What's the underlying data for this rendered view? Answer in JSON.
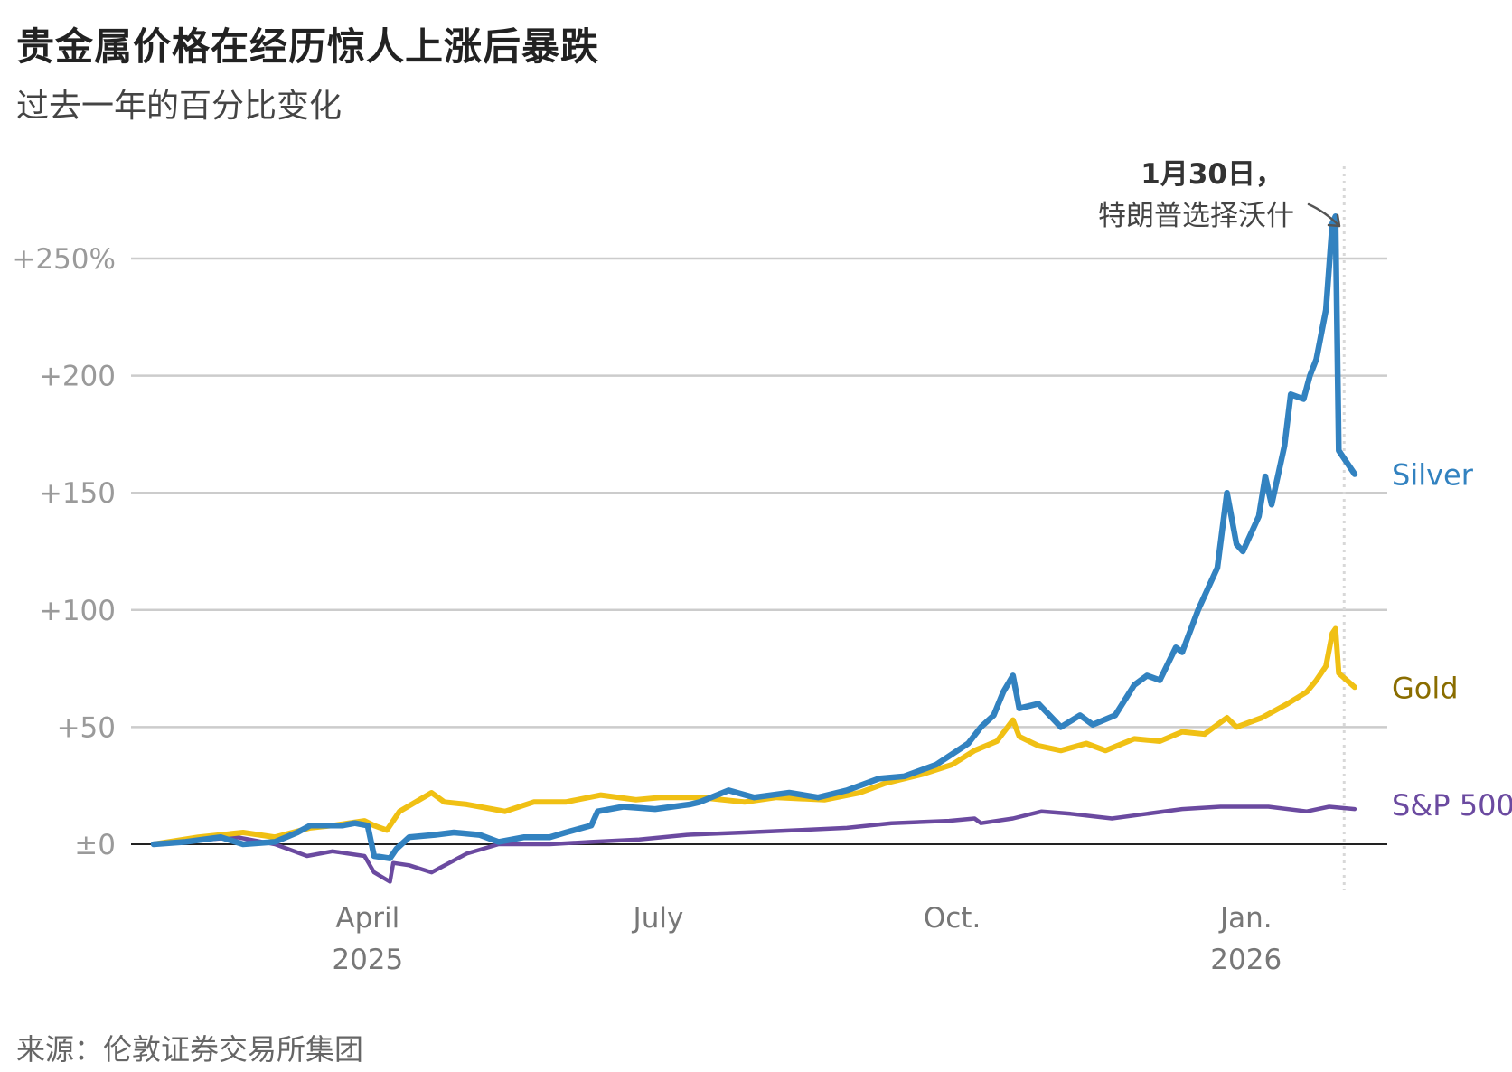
{
  "header": {
    "title": "贵金属价格在经历惊人上涨后暴跌",
    "subtitle": "过去一年的百分比变化"
  },
  "footer": {
    "source": "来源：伦敦证券交易所集团"
  },
  "colors": {
    "silver": "#3282c0",
    "gold": "#f0c014",
    "sp500": "#6b4aa0",
    "silver_label": "#3282c0",
    "gold_label": "#8a6d00",
    "sp500_label": "#6b4aa0"
  },
  "chart_data": {
    "type": "line",
    "title": "贵金属价格在经历惊人上涨后暴跌",
    "subtitle": "过去一年的百分比变化",
    "xlabel": "",
    "ylabel": "",
    "x_range": [
      "2025-01-24",
      "2026-02-06"
    ],
    "ylim": [
      -22,
      265
    ],
    "y_ticks": [
      {
        "value": 0,
        "label": "±0"
      },
      {
        "value": 50,
        "label": "+50"
      },
      {
        "value": 100,
        "label": "+100"
      },
      {
        "value": 150,
        "label": "+150"
      },
      {
        "value": 200,
        "label": "+200"
      },
      {
        "value": 250,
        "label": "+250%"
      }
    ],
    "x_ticks": [
      {
        "date": "2025-04-01",
        "label": "April",
        "sublabel": "2025"
      },
      {
        "date": "2025-07-01",
        "label": "July",
        "sublabel": ""
      },
      {
        "date": "2025-10-01",
        "label": "Oct.",
        "sublabel": ""
      },
      {
        "date": "2026-01-01",
        "label": "Jan.",
        "sublabel": "2026"
      }
    ],
    "grid": true,
    "annotation": {
      "date": "2026-01-30",
      "bold": "1月30日，",
      "text": "特朗普选择沃什"
    },
    "series": [
      {
        "name": "Silver",
        "key": "silver",
        "points": [
          [
            "2025-01-24",
            0
          ],
          [
            "2025-02-03",
            1
          ],
          [
            "2025-02-14",
            3
          ],
          [
            "2025-02-21",
            0
          ],
          [
            "2025-03-03",
            1
          ],
          [
            "2025-03-10",
            5
          ],
          [
            "2025-03-14",
            8
          ],
          [
            "2025-03-24",
            8
          ],
          [
            "2025-03-28",
            9
          ],
          [
            "2025-04-01",
            8
          ],
          [
            "2025-04-03",
            -5
          ],
          [
            "2025-04-08",
            -6
          ],
          [
            "2025-04-10",
            -2
          ],
          [
            "2025-04-14",
            3
          ],
          [
            "2025-04-22",
            4
          ],
          [
            "2025-04-28",
            5
          ],
          [
            "2025-05-06",
            4
          ],
          [
            "2025-05-12",
            1
          ],
          [
            "2025-05-20",
            3
          ],
          [
            "2025-05-28",
            3
          ],
          [
            "2025-06-02",
            5
          ],
          [
            "2025-06-10",
            8
          ],
          [
            "2025-06-12",
            14
          ],
          [
            "2025-06-20",
            16
          ],
          [
            "2025-06-30",
            15
          ],
          [
            "2025-07-11",
            17
          ],
          [
            "2025-07-14",
            18
          ],
          [
            "2025-07-23",
            23
          ],
          [
            "2025-07-31",
            20
          ],
          [
            "2025-08-11",
            22
          ],
          [
            "2025-08-20",
            20
          ],
          [
            "2025-08-29",
            23
          ],
          [
            "2025-09-08",
            28
          ],
          [
            "2025-09-16",
            29
          ],
          [
            "2025-09-26",
            34
          ],
          [
            "2025-10-06",
            43
          ],
          [
            "2025-10-10",
            50
          ],
          [
            "2025-10-14",
            55
          ],
          [
            "2025-10-17",
            65
          ],
          [
            "2025-10-20",
            72
          ],
          [
            "2025-10-22",
            58
          ],
          [
            "2025-10-28",
            60
          ],
          [
            "2025-11-04",
            50
          ],
          [
            "2025-11-10",
            55
          ],
          [
            "2025-11-14",
            51
          ],
          [
            "2025-11-21",
            55
          ],
          [
            "2025-11-27",
            68
          ],
          [
            "2025-12-01",
            72
          ],
          [
            "2025-12-05",
            70
          ],
          [
            "2025-12-10",
            84
          ],
          [
            "2025-12-12",
            82
          ],
          [
            "2025-12-17",
            100
          ],
          [
            "2025-12-23",
            118
          ],
          [
            "2025-12-26",
            150
          ],
          [
            "2025-12-29",
            128
          ],
          [
            "2025-12-31",
            125
          ],
          [
            "2026-01-05",
            140
          ],
          [
            "2026-01-07",
            157
          ],
          [
            "2026-01-09",
            145
          ],
          [
            "2026-01-13",
            170
          ],
          [
            "2026-01-15",
            192
          ],
          [
            "2026-01-19",
            190
          ],
          [
            "2026-01-21",
            200
          ],
          [
            "2026-01-23",
            207
          ],
          [
            "2026-01-26",
            228
          ],
          [
            "2026-01-28",
            265
          ],
          [
            "2026-01-29",
            268
          ],
          [
            "2026-01-30",
            168
          ],
          [
            "2026-02-04",
            158
          ]
        ]
      },
      {
        "name": "Gold",
        "key": "gold",
        "points": [
          [
            "2025-01-24",
            0
          ],
          [
            "2025-02-07",
            3
          ],
          [
            "2025-02-21",
            5
          ],
          [
            "2025-03-03",
            3
          ],
          [
            "2025-03-14",
            7
          ],
          [
            "2025-03-21",
            8
          ],
          [
            "2025-03-31",
            10
          ],
          [
            "2025-04-03",
            8
          ],
          [
            "2025-04-07",
            6
          ],
          [
            "2025-04-11",
            14
          ],
          [
            "2025-04-16",
            18
          ],
          [
            "2025-04-21",
            22
          ],
          [
            "2025-04-25",
            18
          ],
          [
            "2025-05-02",
            17
          ],
          [
            "2025-05-14",
            14
          ],
          [
            "2025-05-23",
            18
          ],
          [
            "2025-06-02",
            18
          ],
          [
            "2025-06-13",
            21
          ],
          [
            "2025-06-24",
            19
          ],
          [
            "2025-07-02",
            20
          ],
          [
            "2025-07-14",
            20
          ],
          [
            "2025-07-28",
            18
          ],
          [
            "2025-08-07",
            20
          ],
          [
            "2025-08-22",
            19
          ],
          [
            "2025-09-02",
            22
          ],
          [
            "2025-09-10",
            26
          ],
          [
            "2025-09-22",
            30
          ],
          [
            "2025-10-01",
            34
          ],
          [
            "2025-10-08",
            40
          ],
          [
            "2025-10-15",
            44
          ],
          [
            "2025-10-20",
            53
          ],
          [
            "2025-10-22",
            46
          ],
          [
            "2025-10-28",
            42
          ],
          [
            "2025-11-04",
            40
          ],
          [
            "2025-11-12",
            43
          ],
          [
            "2025-11-18",
            40
          ],
          [
            "2025-11-27",
            45
          ],
          [
            "2025-12-05",
            44
          ],
          [
            "2025-12-12",
            48
          ],
          [
            "2025-12-19",
            47
          ],
          [
            "2025-12-26",
            54
          ],
          [
            "2025-12-29",
            50
          ],
          [
            "2026-01-06",
            54
          ],
          [
            "2026-01-14",
            60
          ],
          [
            "2026-01-20",
            65
          ],
          [
            "2026-01-23",
            70
          ],
          [
            "2026-01-26",
            76
          ],
          [
            "2026-01-28",
            90
          ],
          [
            "2026-01-29",
            92
          ],
          [
            "2026-01-30",
            73
          ],
          [
            "2026-02-04",
            67
          ]
        ]
      },
      {
        "name": "S&P 500",
        "key": "sp500",
        "points": [
          [
            "2025-01-24",
            0
          ],
          [
            "2025-02-10",
            2
          ],
          [
            "2025-02-19",
            3
          ],
          [
            "2025-03-03",
            0
          ],
          [
            "2025-03-13",
            -5
          ],
          [
            "2025-03-21",
            -3
          ],
          [
            "2025-03-31",
            -5
          ],
          [
            "2025-04-03",
            -12
          ],
          [
            "2025-04-08",
            -16
          ],
          [
            "2025-04-09",
            -8
          ],
          [
            "2025-04-14",
            -9
          ],
          [
            "2025-04-21",
            -12
          ],
          [
            "2025-05-02",
            -4
          ],
          [
            "2025-05-12",
            0
          ],
          [
            "2025-05-28",
            0
          ],
          [
            "2025-06-10",
            1
          ],
          [
            "2025-06-25",
            2
          ],
          [
            "2025-07-10",
            4
          ],
          [
            "2025-07-28",
            5
          ],
          [
            "2025-08-14",
            6
          ],
          [
            "2025-08-29",
            7
          ],
          [
            "2025-09-12",
            9
          ],
          [
            "2025-09-30",
            10
          ],
          [
            "2025-10-08",
            11
          ],
          [
            "2025-10-10",
            9
          ],
          [
            "2025-10-20",
            11
          ],
          [
            "2025-10-29",
            14
          ],
          [
            "2025-11-07",
            13
          ],
          [
            "2025-11-20",
            11
          ],
          [
            "2025-12-01",
            13
          ],
          [
            "2025-12-12",
            15
          ],
          [
            "2025-12-24",
            16
          ],
          [
            "2026-01-08",
            16
          ],
          [
            "2026-01-20",
            14
          ],
          [
            "2026-01-27",
            16
          ],
          [
            "2026-02-04",
            15
          ]
        ]
      }
    ]
  }
}
